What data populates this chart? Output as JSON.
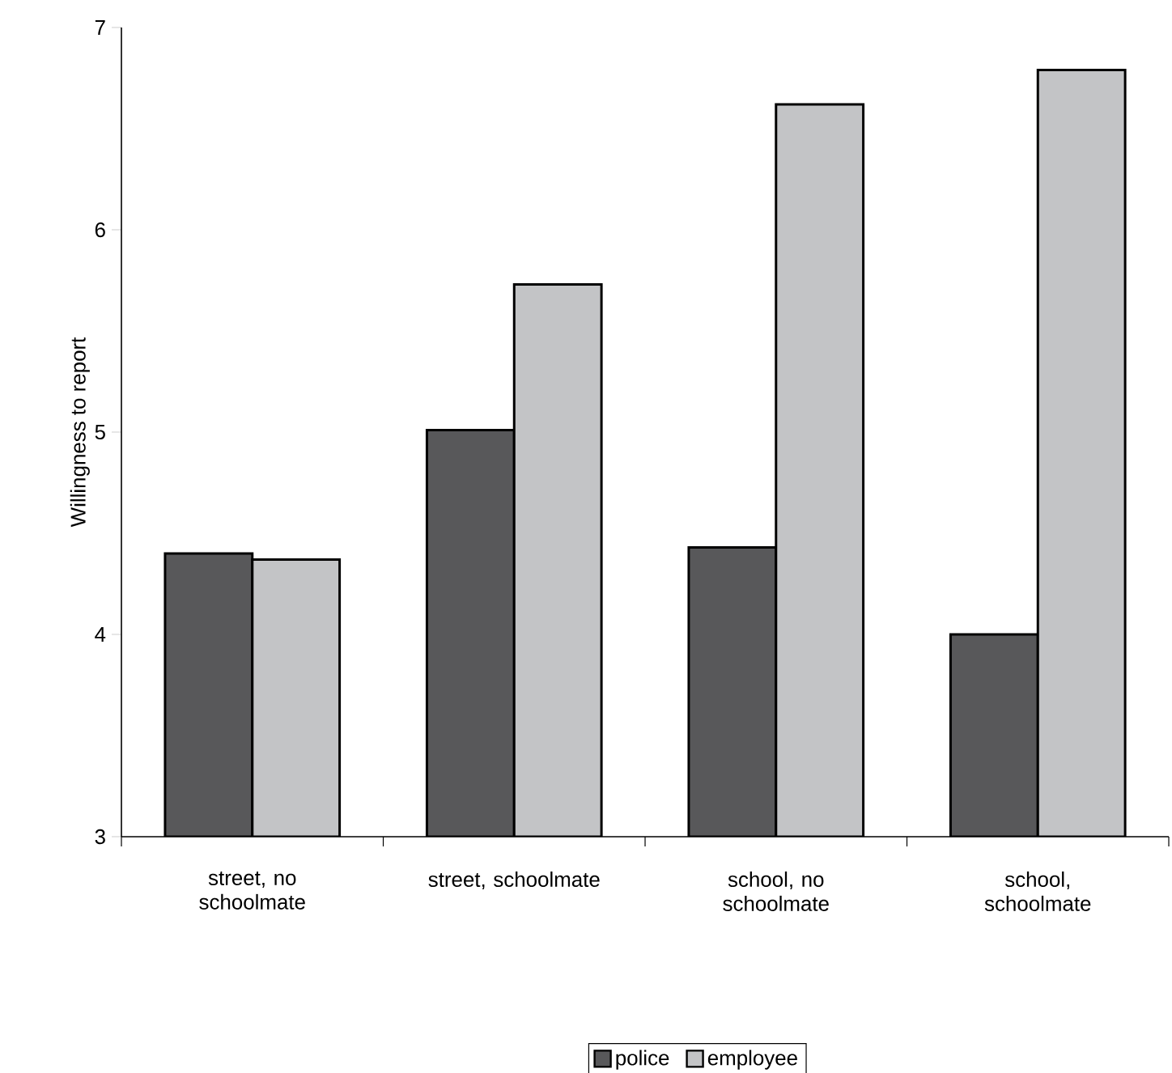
{
  "chart_data": {
    "type": "bar",
    "ylabel": "Willingness to report",
    "categories": [
      "street, no schoolmate",
      "street, schoolmate",
      "school, no schoolmate",
      "school, schoolmate"
    ],
    "series": [
      {
        "name": "police",
        "color": "#58585a",
        "values": [
          4.4,
          5.01,
          4.43,
          4.0
        ]
      },
      {
        "name": "employee",
        "color": "#c3c4c6",
        "values": [
          4.37,
          5.73,
          6.62,
          6.79
        ]
      }
    ],
    "ylim": [
      3,
      7
    ],
    "yticks": [
      3,
      4,
      5,
      6,
      7
    ],
    "grid": false,
    "legend": "bottom"
  }
}
